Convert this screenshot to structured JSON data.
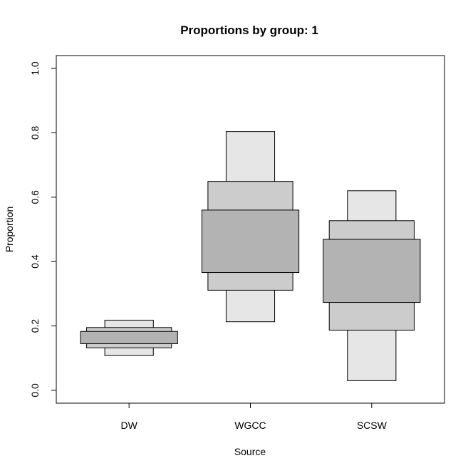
{
  "chart_data": {
    "type": "box",
    "title": "Proportions by group: 1",
    "xlabel": "Source",
    "ylabel": "Proportion",
    "categories": [
      "DW",
      "WGCC",
      "SCSW"
    ],
    "ylim": [
      -0.04,
      1.04
    ],
    "yticks": [
      0.0,
      0.2,
      0.4,
      0.6,
      0.8,
      1.0
    ],
    "ytick_labels": [
      "0.0",
      "0.2",
      "0.4",
      "0.6",
      "0.8",
      "1.0"
    ],
    "grid": false,
    "legend": "none",
    "colors": {
      "outer": "#e6e6e6",
      "middle": "#cccccc",
      "inner": "#b3b3b3",
      "stroke": "#000000"
    },
    "bands": [
      {
        "category": "DW",
        "outer": [
          0.108,
          0.218
        ],
        "middle": [
          0.132,
          0.195
        ],
        "inner": [
          0.145,
          0.183
        ]
      },
      {
        "category": "WGCC",
        "outer": [
          0.213,
          0.804
        ],
        "middle": [
          0.311,
          0.649
        ],
        "inner": [
          0.366,
          0.56
        ]
      },
      {
        "category": "SCSW",
        "outer": [
          0.03,
          0.62
        ],
        "middle": [
          0.187,
          0.527
        ],
        "inner": [
          0.273,
          0.469
        ]
      }
    ]
  }
}
